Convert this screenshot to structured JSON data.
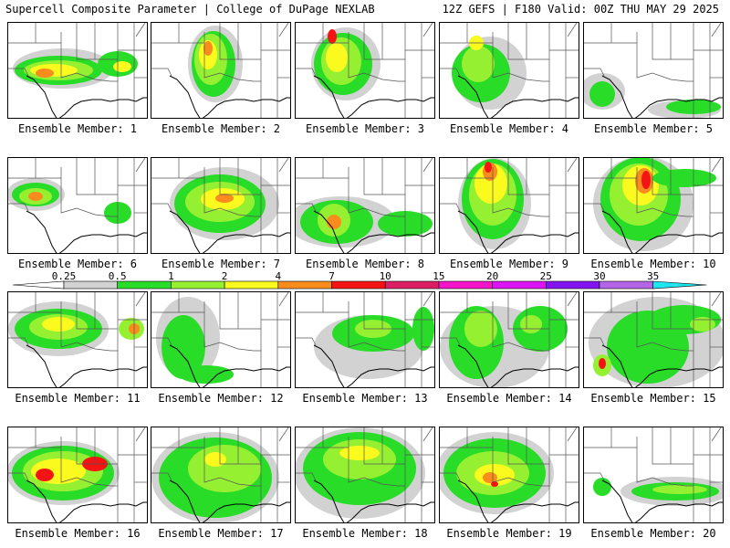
{
  "header": {
    "left": "Supercell Composite Parameter | College of DuPage NEXLAB",
    "right": "12Z GEFS | F180 Valid: 00Z THU MAY 29 2025"
  },
  "panels": [
    {
      "label": "Ensemble Member: 1"
    },
    {
      "label": "Ensemble Member: 2"
    },
    {
      "label": "Ensemble Member: 3"
    },
    {
      "label": "Ensemble Member: 4"
    },
    {
      "label": "Ensemble Member: 5"
    },
    {
      "label": "Ensemble Member: 6"
    },
    {
      "label": "Ensemble Member: 7"
    },
    {
      "label": "Ensemble Member: 8"
    },
    {
      "label": "Ensemble Member: 9"
    },
    {
      "label": "Ensemble Member: 10"
    },
    {
      "label": "Ensemble Member: 11"
    },
    {
      "label": "Ensemble Member: 12"
    },
    {
      "label": "Ensemble Member: 13"
    },
    {
      "label": "Ensemble Member: 14"
    },
    {
      "label": "Ensemble Member: 15"
    },
    {
      "label": "Ensemble Member: 16"
    },
    {
      "label": "Ensemble Member: 17"
    },
    {
      "label": "Ensemble Member: 18"
    },
    {
      "label": "Ensemble Member: 19"
    },
    {
      "label": "Ensemble Member: 20"
    }
  ],
  "colorbar": {
    "ticks": [
      "0.25",
      "0.5",
      "1",
      "2",
      "4",
      "7",
      "10",
      "15",
      "20",
      "25",
      "30",
      "35"
    ],
    "colors": [
      "#d2d2d2",
      "#28dc28",
      "#96f032",
      "#fafa1e",
      "#fa8c1e",
      "#f51414",
      "#dc1e64",
      "#f514c8",
      "#dc14f5",
      "#8214f0",
      "#b464e6",
      "#1ee6f0"
    ]
  }
}
